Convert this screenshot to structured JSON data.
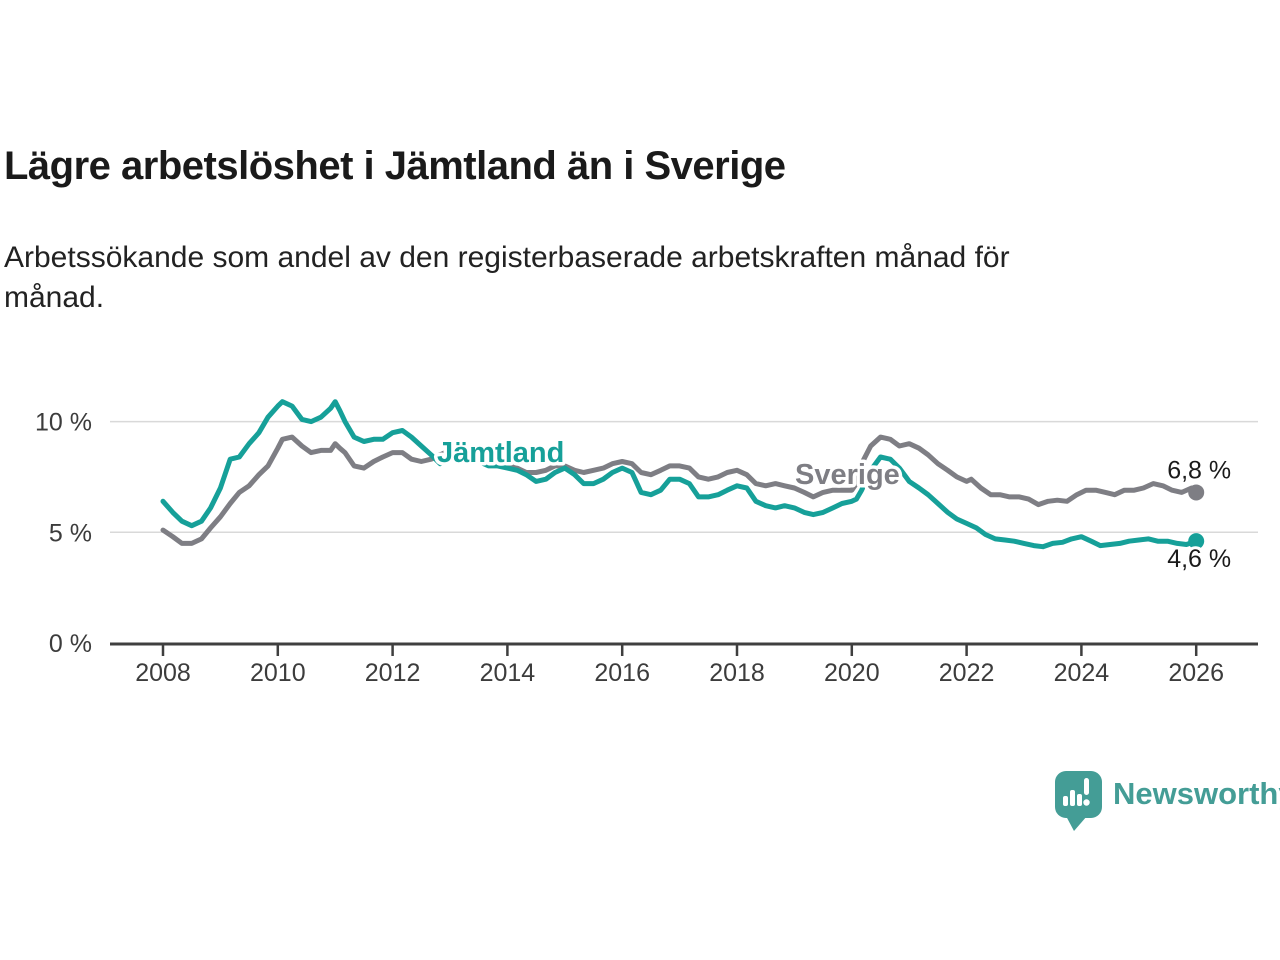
{
  "title": "Lägre arbetslöshet i Jämtland än i Sverige",
  "subtitle": {
    "lines": [
      "Arbetssökande som andel av den registerbaserade arbetskraften månad för",
      "månad."
    ]
  },
  "colors": {
    "jamtland": "#16a099",
    "sverige": "#7e7e84",
    "axis": "#3f3f3f",
    "grid": "#d9d9d9",
    "text": "#1a1a1a",
    "logo": "#449d96"
  },
  "logo": {
    "text": "Newsworthy"
  },
  "chart_data": {
    "type": "line",
    "title": "Lägre arbetslöshet i Jämtland än i Sverige",
    "subtitle": "Arbetssökande som andel av den registerbaserade arbetskraften månad för månad.",
    "unit": "%",
    "grid": "horizontal",
    "legend_position": "inline-labels",
    "x_range": [
      2008,
      2026
    ],
    "ylim": [
      0,
      11.2
    ],
    "x_ticks": [
      2008,
      2010,
      2012,
      2014,
      2016,
      2018,
      2020,
      2022,
      2024,
      2026
    ],
    "y_ticks": [
      {
        "value": 0,
        "label": "0 %"
      },
      {
        "value": 5,
        "label": "5 %"
      },
      {
        "value": 10,
        "label": "10 %"
      }
    ],
    "series": [
      {
        "id": "sverige",
        "name": "Sverige",
        "color": "#7e7e84",
        "end_label": "6,8 %",
        "end_value": 6.8,
        "points": [
          [
            2008.0,
            5.1
          ],
          [
            2008.17,
            4.8
          ],
          [
            2008.33,
            4.5
          ],
          [
            2008.5,
            4.5
          ],
          [
            2008.67,
            4.7
          ],
          [
            2008.83,
            5.2
          ],
          [
            2009.0,
            5.7
          ],
          [
            2009.17,
            6.3
          ],
          [
            2009.33,
            6.8
          ],
          [
            2009.5,
            7.1
          ],
          [
            2009.67,
            7.6
          ],
          [
            2009.83,
            8.0
          ],
          [
            2010.0,
            8.8
          ],
          [
            2010.08,
            9.2
          ],
          [
            2010.25,
            9.3
          ],
          [
            2010.42,
            8.9
          ],
          [
            2010.58,
            8.6
          ],
          [
            2010.75,
            8.7
          ],
          [
            2010.92,
            8.7
          ],
          [
            2011.0,
            9.0
          ],
          [
            2011.08,
            8.8
          ],
          [
            2011.17,
            8.6
          ],
          [
            2011.33,
            8.0
          ],
          [
            2011.5,
            7.9
          ],
          [
            2011.67,
            8.2
          ],
          [
            2011.83,
            8.4
          ],
          [
            2012.0,
            8.6
          ],
          [
            2012.17,
            8.6
          ],
          [
            2012.33,
            8.3
          ],
          [
            2012.5,
            8.2
          ],
          [
            2012.67,
            8.3
          ],
          [
            2012.83,
            8.5
          ],
          [
            2013.0,
            8.7
          ],
          [
            2013.17,
            8.6
          ],
          [
            2013.33,
            8.5
          ],
          [
            2013.5,
            8.4
          ],
          [
            2013.67,
            8.3
          ],
          [
            2013.83,
            8.2
          ],
          [
            2014.0,
            8.1
          ],
          [
            2014.17,
            7.9
          ],
          [
            2014.33,
            7.7
          ],
          [
            2014.5,
            7.7
          ],
          [
            2014.67,
            7.8
          ],
          [
            2014.83,
            8.0
          ],
          [
            2015.0,
            8.0
          ],
          [
            2015.17,
            7.8
          ],
          [
            2015.33,
            7.7
          ],
          [
            2015.5,
            7.8
          ],
          [
            2015.67,
            7.9
          ],
          [
            2015.83,
            8.1
          ],
          [
            2016.0,
            8.2
          ],
          [
            2016.17,
            8.1
          ],
          [
            2016.33,
            7.7
          ],
          [
            2016.5,
            7.6
          ],
          [
            2016.67,
            7.8
          ],
          [
            2016.83,
            8.0
          ],
          [
            2017.0,
            8.0
          ],
          [
            2017.17,
            7.9
          ],
          [
            2017.33,
            7.5
          ],
          [
            2017.5,
            7.4
          ],
          [
            2017.67,
            7.5
          ],
          [
            2017.83,
            7.7
          ],
          [
            2018.0,
            7.8
          ],
          [
            2018.17,
            7.6
          ],
          [
            2018.33,
            7.2
          ],
          [
            2018.5,
            7.1
          ],
          [
            2018.67,
            7.2
          ],
          [
            2018.83,
            7.1
          ],
          [
            2019.0,
            7.0
          ],
          [
            2019.17,
            6.8
          ],
          [
            2019.33,
            6.6
          ],
          [
            2019.5,
            6.8
          ],
          [
            2019.67,
            6.9
          ],
          [
            2019.83,
            6.9
          ],
          [
            2020.0,
            6.9
          ],
          [
            2020.08,
            7.2
          ],
          [
            2020.17,
            8.1
          ],
          [
            2020.33,
            8.9
          ],
          [
            2020.5,
            9.3
          ],
          [
            2020.67,
            9.2
          ],
          [
            2020.83,
            8.9
          ],
          [
            2021.0,
            9.0
          ],
          [
            2021.17,
            8.8
          ],
          [
            2021.33,
            8.5
          ],
          [
            2021.5,
            8.1
          ],
          [
            2021.67,
            7.8
          ],
          [
            2021.83,
            7.5
          ],
          [
            2022.0,
            7.3
          ],
          [
            2022.08,
            7.4
          ],
          [
            2022.25,
            7.0
          ],
          [
            2022.42,
            6.7
          ],
          [
            2022.58,
            6.7
          ],
          [
            2022.75,
            6.6
          ],
          [
            2022.92,
            6.6
          ],
          [
            2023.08,
            6.5
          ],
          [
            2023.25,
            6.25
          ],
          [
            2023.42,
            6.4
          ],
          [
            2023.58,
            6.45
          ],
          [
            2023.75,
            6.4
          ],
          [
            2023.92,
            6.7
          ],
          [
            2024.08,
            6.9
          ],
          [
            2024.25,
            6.9
          ],
          [
            2024.42,
            6.8
          ],
          [
            2024.58,
            6.7
          ],
          [
            2024.75,
            6.9
          ],
          [
            2024.92,
            6.9
          ],
          [
            2025.08,
            7.0
          ],
          [
            2025.25,
            7.2
          ],
          [
            2025.42,
            7.1
          ],
          [
            2025.58,
            6.9
          ],
          [
            2025.75,
            6.8
          ],
          [
            2025.92,
            7.0
          ],
          [
            2026.0,
            6.8
          ]
        ]
      },
      {
        "id": "jamtland",
        "name": "Jämtland",
        "color": "#16a099",
        "end_label": "4,6 %",
        "end_value": 4.6,
        "points": [
          [
            2008.0,
            6.4
          ],
          [
            2008.17,
            5.9
          ],
          [
            2008.33,
            5.5
          ],
          [
            2008.5,
            5.3
          ],
          [
            2008.67,
            5.5
          ],
          [
            2008.83,
            6.1
          ],
          [
            2009.0,
            7.0
          ],
          [
            2009.17,
            8.3
          ],
          [
            2009.33,
            8.4
          ],
          [
            2009.5,
            9.0
          ],
          [
            2009.67,
            9.5
          ],
          [
            2009.83,
            10.2
          ],
          [
            2010.0,
            10.7
          ],
          [
            2010.08,
            10.9
          ],
          [
            2010.25,
            10.7
          ],
          [
            2010.42,
            10.1
          ],
          [
            2010.58,
            10.0
          ],
          [
            2010.75,
            10.2
          ],
          [
            2010.92,
            10.6
          ],
          [
            2011.0,
            10.9
          ],
          [
            2011.08,
            10.5
          ],
          [
            2011.17,
            10.0
          ],
          [
            2011.33,
            9.3
          ],
          [
            2011.5,
            9.1
          ],
          [
            2011.67,
            9.2
          ],
          [
            2011.83,
            9.2
          ],
          [
            2012.0,
            9.5
          ],
          [
            2012.17,
            9.6
          ],
          [
            2012.33,
            9.3
          ],
          [
            2012.5,
            8.9
          ],
          [
            2012.67,
            8.5
          ],
          [
            2012.83,
            8.1
          ],
          [
            2013.0,
            8.4
          ],
          [
            2013.17,
            8.5
          ],
          [
            2013.33,
            8.4
          ],
          [
            2013.5,
            8.2
          ],
          [
            2013.67,
            8.0
          ],
          [
            2013.83,
            8.0
          ],
          [
            2014.0,
            7.9
          ],
          [
            2014.17,
            7.8
          ],
          [
            2014.33,
            7.6
          ],
          [
            2014.5,
            7.3
          ],
          [
            2014.67,
            7.4
          ],
          [
            2014.83,
            7.7
          ],
          [
            2015.0,
            7.9
          ],
          [
            2015.17,
            7.6
          ],
          [
            2015.33,
            7.2
          ],
          [
            2015.5,
            7.2
          ],
          [
            2015.67,
            7.4
          ],
          [
            2015.83,
            7.7
          ],
          [
            2016.0,
            7.9
          ],
          [
            2016.17,
            7.7
          ],
          [
            2016.33,
            6.8
          ],
          [
            2016.5,
            6.7
          ],
          [
            2016.67,
            6.9
          ],
          [
            2016.83,
            7.4
          ],
          [
            2017.0,
            7.4
          ],
          [
            2017.17,
            7.2
          ],
          [
            2017.33,
            6.6
          ],
          [
            2017.5,
            6.6
          ],
          [
            2017.67,
            6.7
          ],
          [
            2017.83,
            6.9
          ],
          [
            2018.0,
            7.1
          ],
          [
            2018.17,
            7.0
          ],
          [
            2018.33,
            6.4
          ],
          [
            2018.5,
            6.2
          ],
          [
            2018.67,
            6.1
          ],
          [
            2018.83,
            6.2
          ],
          [
            2019.0,
            6.1
          ],
          [
            2019.17,
            5.9
          ],
          [
            2019.33,
            5.8
          ],
          [
            2019.5,
            5.9
          ],
          [
            2019.67,
            6.1
          ],
          [
            2019.83,
            6.3
          ],
          [
            2020.0,
            6.4
          ],
          [
            2020.08,
            6.5
          ],
          [
            2020.17,
            6.9
          ],
          [
            2020.33,
            7.8
          ],
          [
            2020.5,
            8.4
          ],
          [
            2020.67,
            8.3
          ],
          [
            2020.83,
            7.9
          ],
          [
            2021.0,
            7.3
          ],
          [
            2021.17,
            7.0
          ],
          [
            2021.33,
            6.7
          ],
          [
            2021.5,
            6.3
          ],
          [
            2021.67,
            5.9
          ],
          [
            2021.83,
            5.6
          ],
          [
            2022.0,
            5.4
          ],
          [
            2022.17,
            5.2
          ],
          [
            2022.33,
            4.9
          ],
          [
            2022.5,
            4.7
          ],
          [
            2022.67,
            4.65
          ],
          [
            2022.83,
            4.6
          ],
          [
            2023.0,
            4.5
          ],
          [
            2023.17,
            4.4
          ],
          [
            2023.33,
            4.35
          ],
          [
            2023.5,
            4.5
          ],
          [
            2023.67,
            4.55
          ],
          [
            2023.83,
            4.7
          ],
          [
            2024.0,
            4.8
          ],
          [
            2024.17,
            4.6
          ],
          [
            2024.33,
            4.4
          ],
          [
            2024.5,
            4.45
          ],
          [
            2024.67,
            4.5
          ],
          [
            2024.83,
            4.6
          ],
          [
            2025.0,
            4.65
          ],
          [
            2025.17,
            4.7
          ],
          [
            2025.33,
            4.6
          ],
          [
            2025.5,
            4.6
          ],
          [
            2025.67,
            4.5
          ],
          [
            2025.83,
            4.45
          ],
          [
            2026.0,
            4.6
          ]
        ]
      }
    ]
  }
}
